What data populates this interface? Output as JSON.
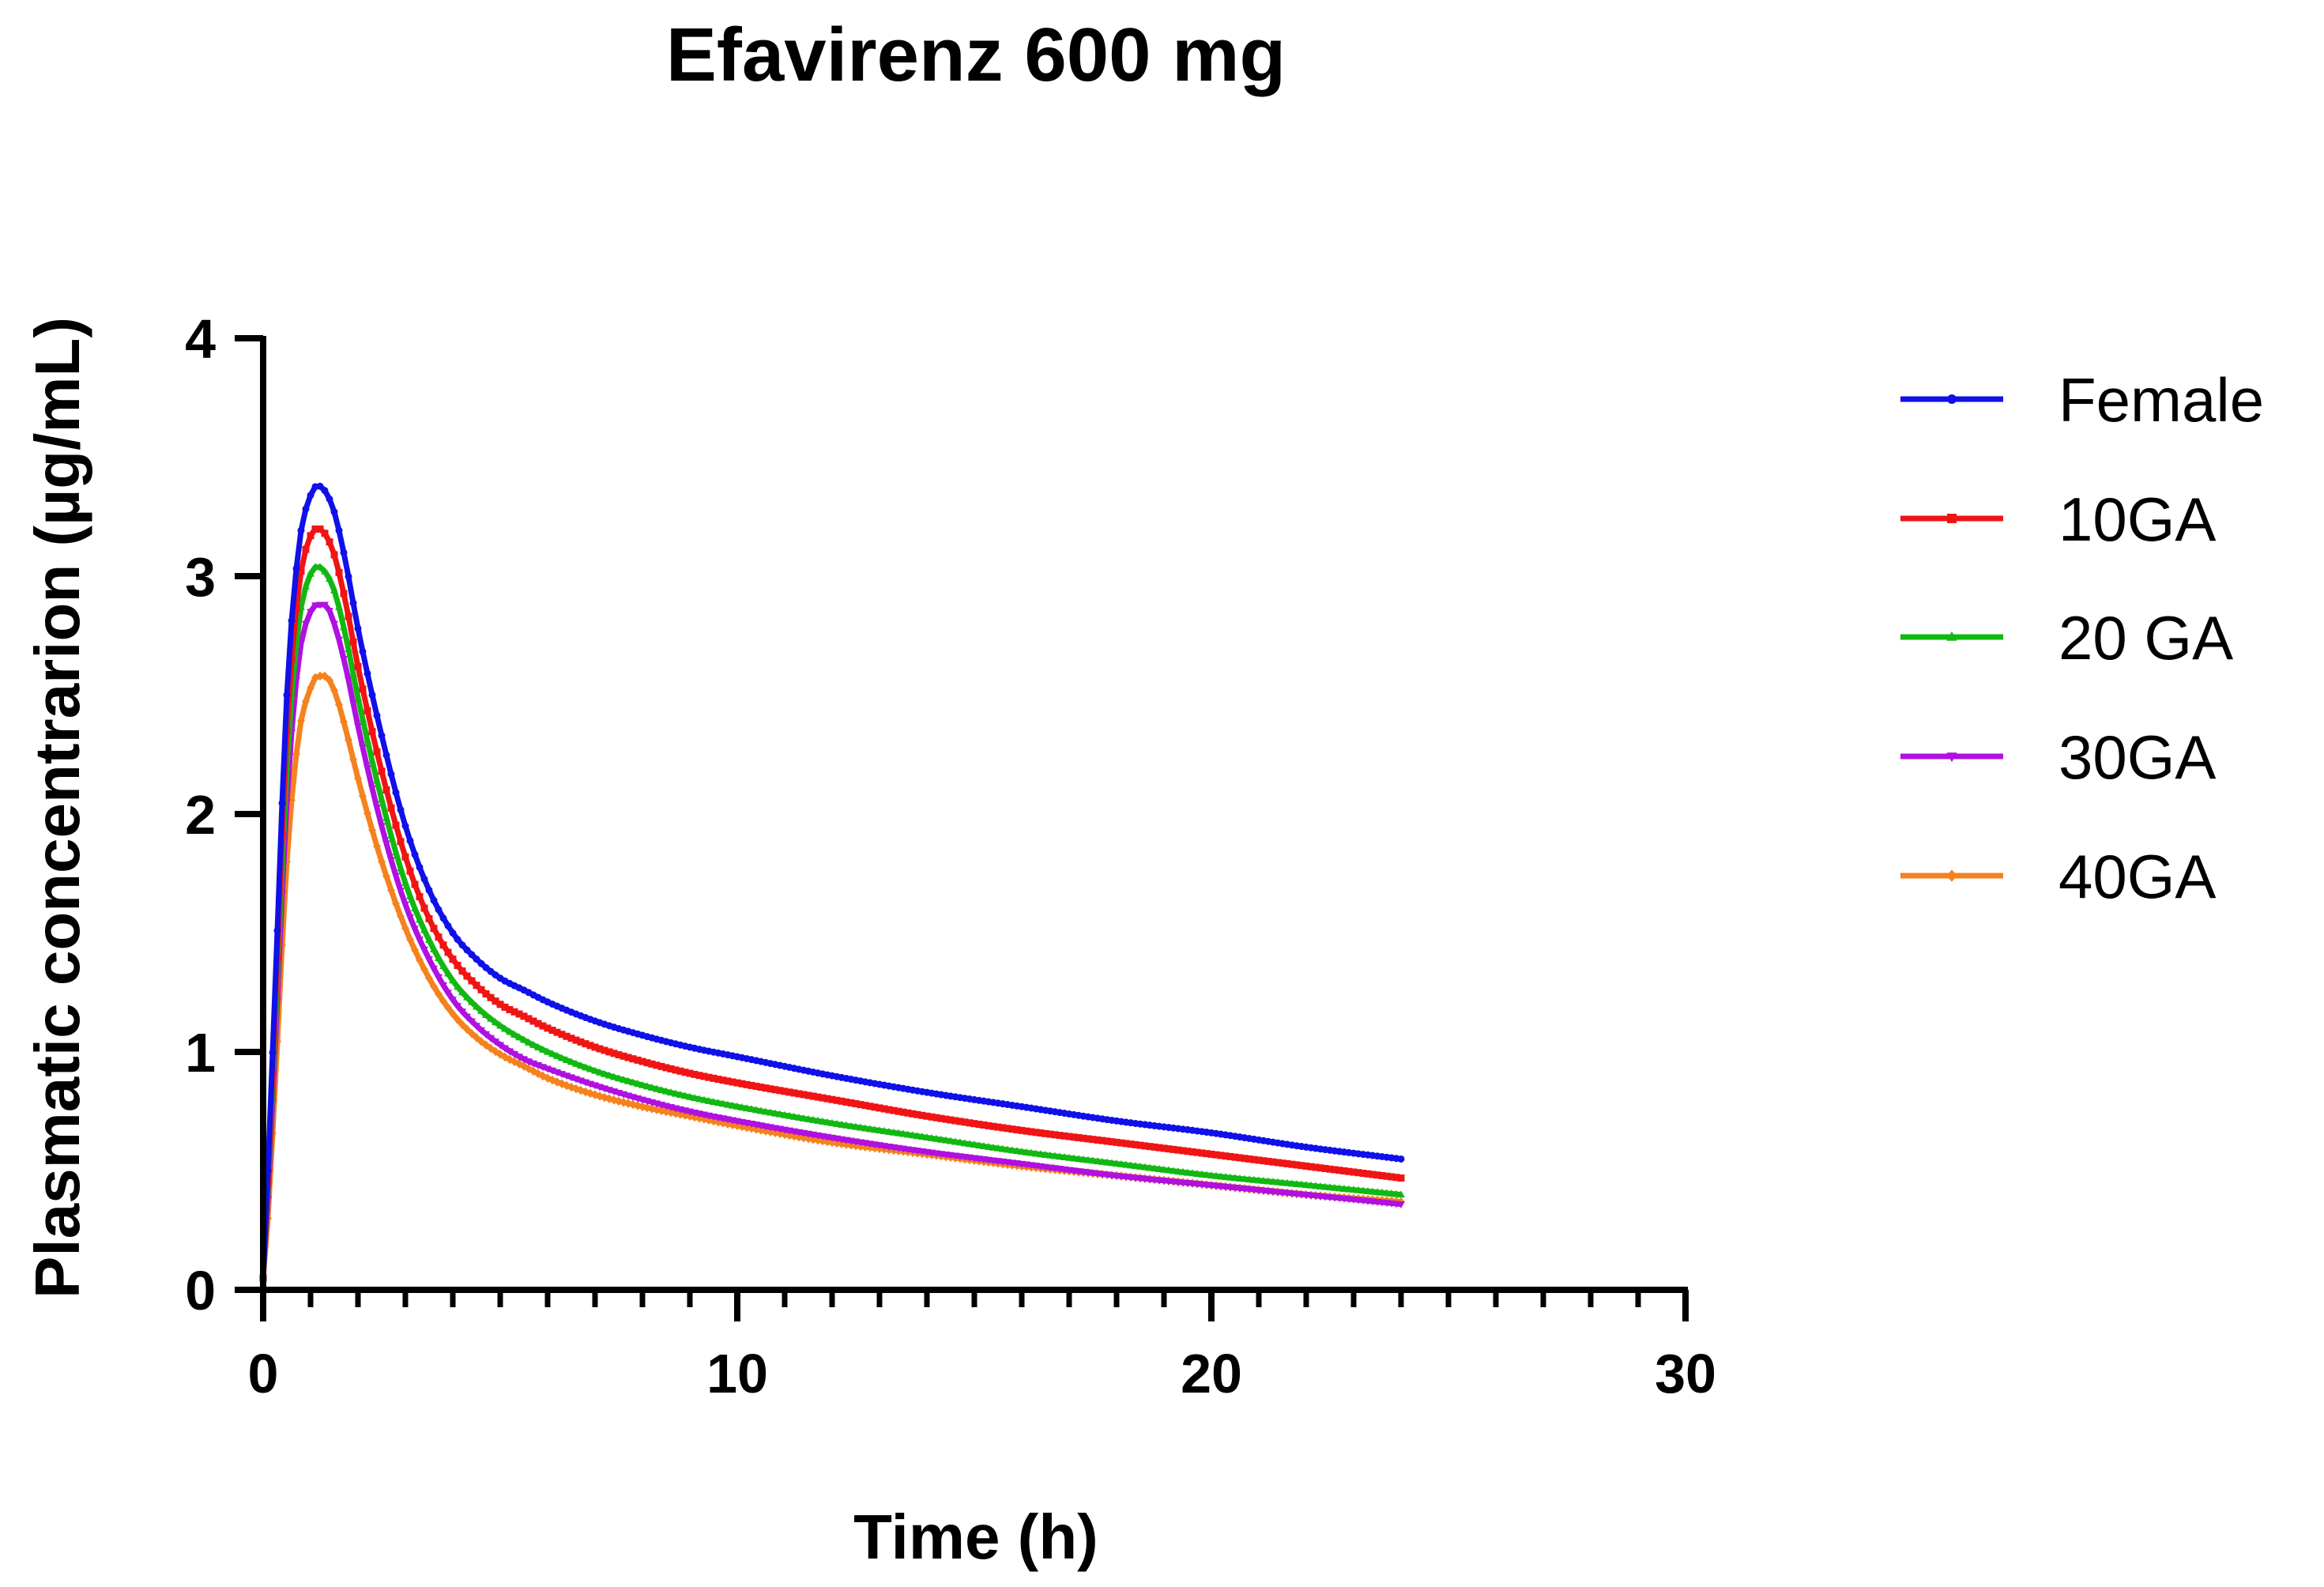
{
  "chart_data": {
    "type": "line",
    "title": "Efavirenz 600 mg",
    "xlabel": "Time (h)",
    "ylabel": "Plasmatic concentrarion (µg/mL)",
    "xlim": [
      0,
      30
    ],
    "ylim": [
      0,
      4
    ],
    "x_ticks": [
      0,
      10,
      20,
      30
    ],
    "x_minor_step": 1,
    "y_ticks": [
      0,
      1,
      2,
      3,
      4
    ],
    "grid": false,
    "legend_position": "right",
    "x": [
      0,
      0.1,
      0.25,
      0.5,
      0.75,
      1,
      1.15,
      1.3,
      1.5,
      1.75,
      2,
      2.5,
      3,
      3.5,
      4,
      4.5,
      5,
      5.5,
      6,
      7,
      8,
      9,
      10,
      12,
      14,
      16,
      18,
      20,
      22,
      24
    ],
    "series": [
      {
        "name": "Female",
        "color": "#1010e8",
        "marker": "circle",
        "values": [
          0.05,
          0.5,
          1.25,
          2.5,
          3.12,
          3.34,
          3.38,
          3.36,
          3.27,
          3.05,
          2.78,
          2.33,
          1.95,
          1.68,
          1.5,
          1.39,
          1.31,
          1.26,
          1.21,
          1.13,
          1.07,
          1.02,
          0.98,
          0.9,
          0.83,
          0.77,
          0.71,
          0.66,
          0.6,
          0.55
        ]
      },
      {
        "name": "10GA",
        "color": "#f01414",
        "marker": "square",
        "values": [
          0.05,
          0.45,
          1.15,
          2.35,
          2.95,
          3.17,
          3.2,
          3.18,
          3.09,
          2.88,
          2.62,
          2.18,
          1.82,
          1.56,
          1.39,
          1.28,
          1.2,
          1.15,
          1.1,
          1.02,
          0.96,
          0.91,
          0.87,
          0.8,
          0.73,
          0.67,
          0.62,
          0.57,
          0.52,
          0.47
        ]
      },
      {
        "name": "20 GA",
        "color": "#12b812",
        "marker": "triangle",
        "values": [
          0.05,
          0.42,
          1.08,
          2.2,
          2.8,
          3.01,
          3.04,
          3.02,
          2.94,
          2.74,
          2.49,
          2.06,
          1.71,
          1.47,
          1.3,
          1.19,
          1.11,
          1.05,
          1.0,
          0.92,
          0.86,
          0.81,
          0.77,
          0.7,
          0.64,
          0.58,
          0.53,
          0.48,
          0.44,
          0.4
        ]
      },
      {
        "name": "30GA",
        "color": "#b010e0",
        "marker": "triangle-down",
        "values": [
          0.05,
          0.38,
          1.0,
          2.05,
          2.65,
          2.85,
          2.88,
          2.88,
          2.8,
          2.61,
          2.37,
          1.95,
          1.62,
          1.39,
          1.22,
          1.11,
          1.03,
          0.97,
          0.93,
          0.86,
          0.8,
          0.75,
          0.71,
          0.64,
          0.58,
          0.53,
          0.48,
          0.44,
          0.4,
          0.36
        ]
      },
      {
        "name": "40GA",
        "color": "#f5821e",
        "marker": "diamond",
        "values": [
          0.05,
          0.3,
          0.85,
          1.8,
          2.33,
          2.53,
          2.58,
          2.58,
          2.52,
          2.35,
          2.15,
          1.8,
          1.52,
          1.31,
          1.16,
          1.06,
          0.99,
          0.94,
          0.89,
          0.82,
          0.77,
          0.73,
          0.69,
          0.62,
          0.57,
          0.52,
          0.48,
          0.44,
          0.4,
          0.37
        ]
      }
    ]
  }
}
